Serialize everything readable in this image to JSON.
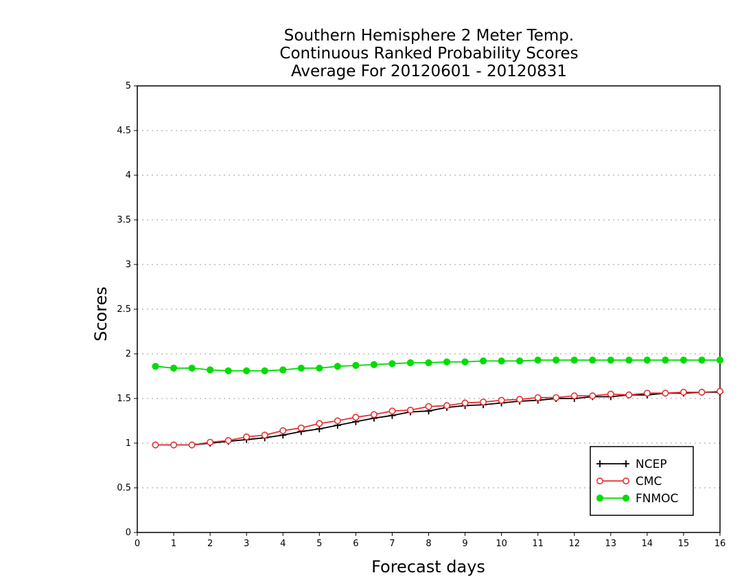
{
  "chart_data": {
    "type": "line",
    "title_lines": [
      "Southern Hemisphere 2 Meter Temp.",
      "Continuous Ranked Probability Scores",
      "Average For 20120601 - 20120831"
    ],
    "xlabel": "Forecast days",
    "ylabel": "Scores",
    "xlim": [
      0,
      16
    ],
    "ylim": [
      0,
      5
    ],
    "x_ticks": [
      0,
      1,
      2,
      3,
      4,
      5,
      6,
      7,
      8,
      9,
      10,
      11,
      12,
      13,
      14,
      15,
      16
    ],
    "y_ticks": [
      0,
      0.5,
      1,
      1.5,
      2,
      2.5,
      3,
      3.5,
      4,
      4.5,
      5
    ],
    "x_tick_labels": [
      "0",
      "1",
      "2",
      "3",
      "4",
      "5",
      "6",
      "7",
      "8",
      "9",
      "10",
      "11",
      "12",
      "13",
      "14",
      "15",
      "16"
    ],
    "y_tick_labels": [
      "0",
      "0.5",
      "1",
      "1.5",
      "2",
      "2.5",
      "3",
      "3.5",
      "4",
      "4.5",
      "5"
    ],
    "grid": "horizontal dotted",
    "legend_position": "bottom-right",
    "x": [
      0.5,
      1,
      1.5,
      2,
      2.5,
      3,
      3.5,
      4,
      4.5,
      5,
      5.5,
      6,
      6.5,
      7,
      7.5,
      8,
      8.5,
      9,
      9.5,
      10,
      10.5,
      11,
      11.5,
      12,
      12.5,
      13,
      13.5,
      14,
      14.5,
      15,
      15.5,
      16
    ],
    "series": [
      {
        "name": "NCEP",
        "color": "#000000",
        "marker": "plus",
        "values": [
          0.98,
          0.98,
          0.98,
          1.0,
          1.02,
          1.04,
          1.06,
          1.09,
          1.13,
          1.16,
          1.2,
          1.24,
          1.28,
          1.31,
          1.35,
          1.36,
          1.4,
          1.42,
          1.43,
          1.45,
          1.47,
          1.48,
          1.5,
          1.5,
          1.52,
          1.52,
          1.54,
          1.54,
          1.56,
          1.56,
          1.57,
          1.57
        ]
      },
      {
        "name": "CMC",
        "color": "#e83030",
        "marker": "open-circle",
        "values": [
          0.98,
          0.98,
          0.98,
          1.01,
          1.03,
          1.07,
          1.09,
          1.14,
          1.17,
          1.22,
          1.25,
          1.29,
          1.32,
          1.36,
          1.37,
          1.41,
          1.42,
          1.45,
          1.46,
          1.48,
          1.49,
          1.51,
          1.51,
          1.53,
          1.53,
          1.55,
          1.54,
          1.56,
          1.56,
          1.57,
          1.57,
          1.58
        ]
      },
      {
        "name": "FNMOC",
        "color": "#00dc00",
        "marker": "filled-circle",
        "values": [
          1.86,
          1.84,
          1.84,
          1.82,
          1.81,
          1.81,
          1.81,
          1.82,
          1.84,
          1.84,
          1.86,
          1.87,
          1.88,
          1.89,
          1.9,
          1.9,
          1.91,
          1.91,
          1.92,
          1.92,
          1.92,
          1.93,
          1.93,
          1.93,
          1.93,
          1.93,
          1.93,
          1.93,
          1.93,
          1.93,
          1.93,
          1.93
        ]
      }
    ]
  }
}
